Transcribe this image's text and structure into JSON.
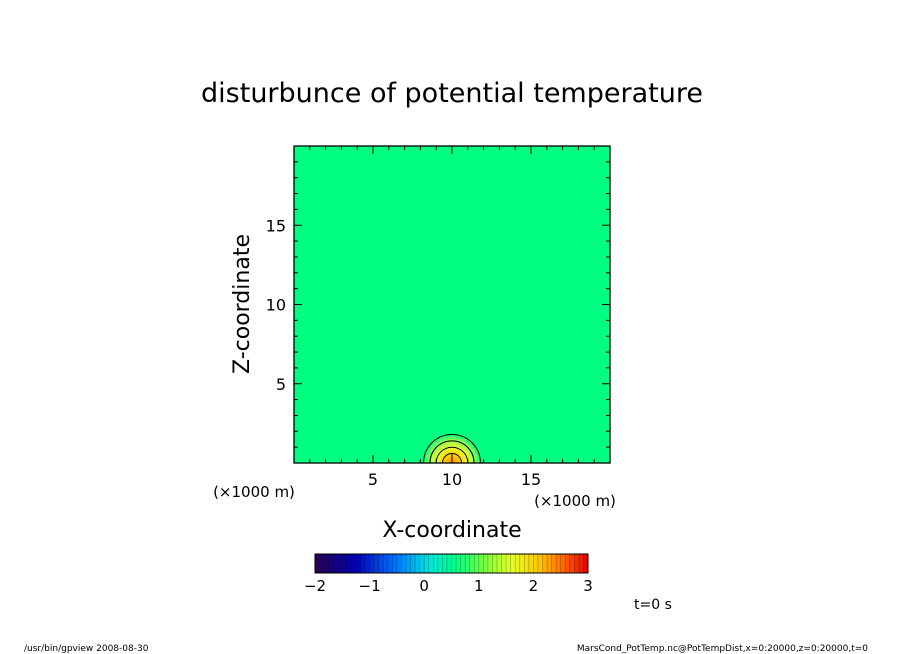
{
  "chart_data": {
    "type": "heatmap",
    "title": "disturbunce of potential temperature",
    "xlabel": "X-coordinate",
    "ylabel": "Z-coordinate",
    "x_unit_label": "(×1000 m)",
    "y_unit_label": "(×1000 m)",
    "xlim": [
      0,
      20
    ],
    "ylim": [
      0,
      20
    ],
    "x_ticks": [
      5,
      10,
      15
    ],
    "y_ticks": [
      5,
      10,
      15
    ],
    "x_tick_labels": [
      "5",
      "10",
      "15"
    ],
    "y_tick_labels": [
      "5",
      "10",
      "15"
    ],
    "field": {
      "background_value": 0,
      "anomaly_center": [
        10,
        0
      ],
      "anomaly_radius_km": 2,
      "peak_value": 3,
      "contour_radii": [
        0.6,
        1.0,
        1.4,
        1.8
      ]
    },
    "colorbar": {
      "min": -2,
      "max": 3,
      "tick_values": [
        -2,
        -1,
        0,
        1,
        2,
        3
      ],
      "tick_labels": [
        "−2",
        "−1",
        "0",
        "1",
        "2",
        "3"
      ]
    },
    "background_color": "#00ff80",
    "time_label": "t=0 s"
  },
  "footer": {
    "left": "/usr/bin/gpview   2008-08-30",
    "right": "MarsCond_PotTemp.nc@PotTempDist,x=0:20000,z=0:20000,t=0"
  }
}
